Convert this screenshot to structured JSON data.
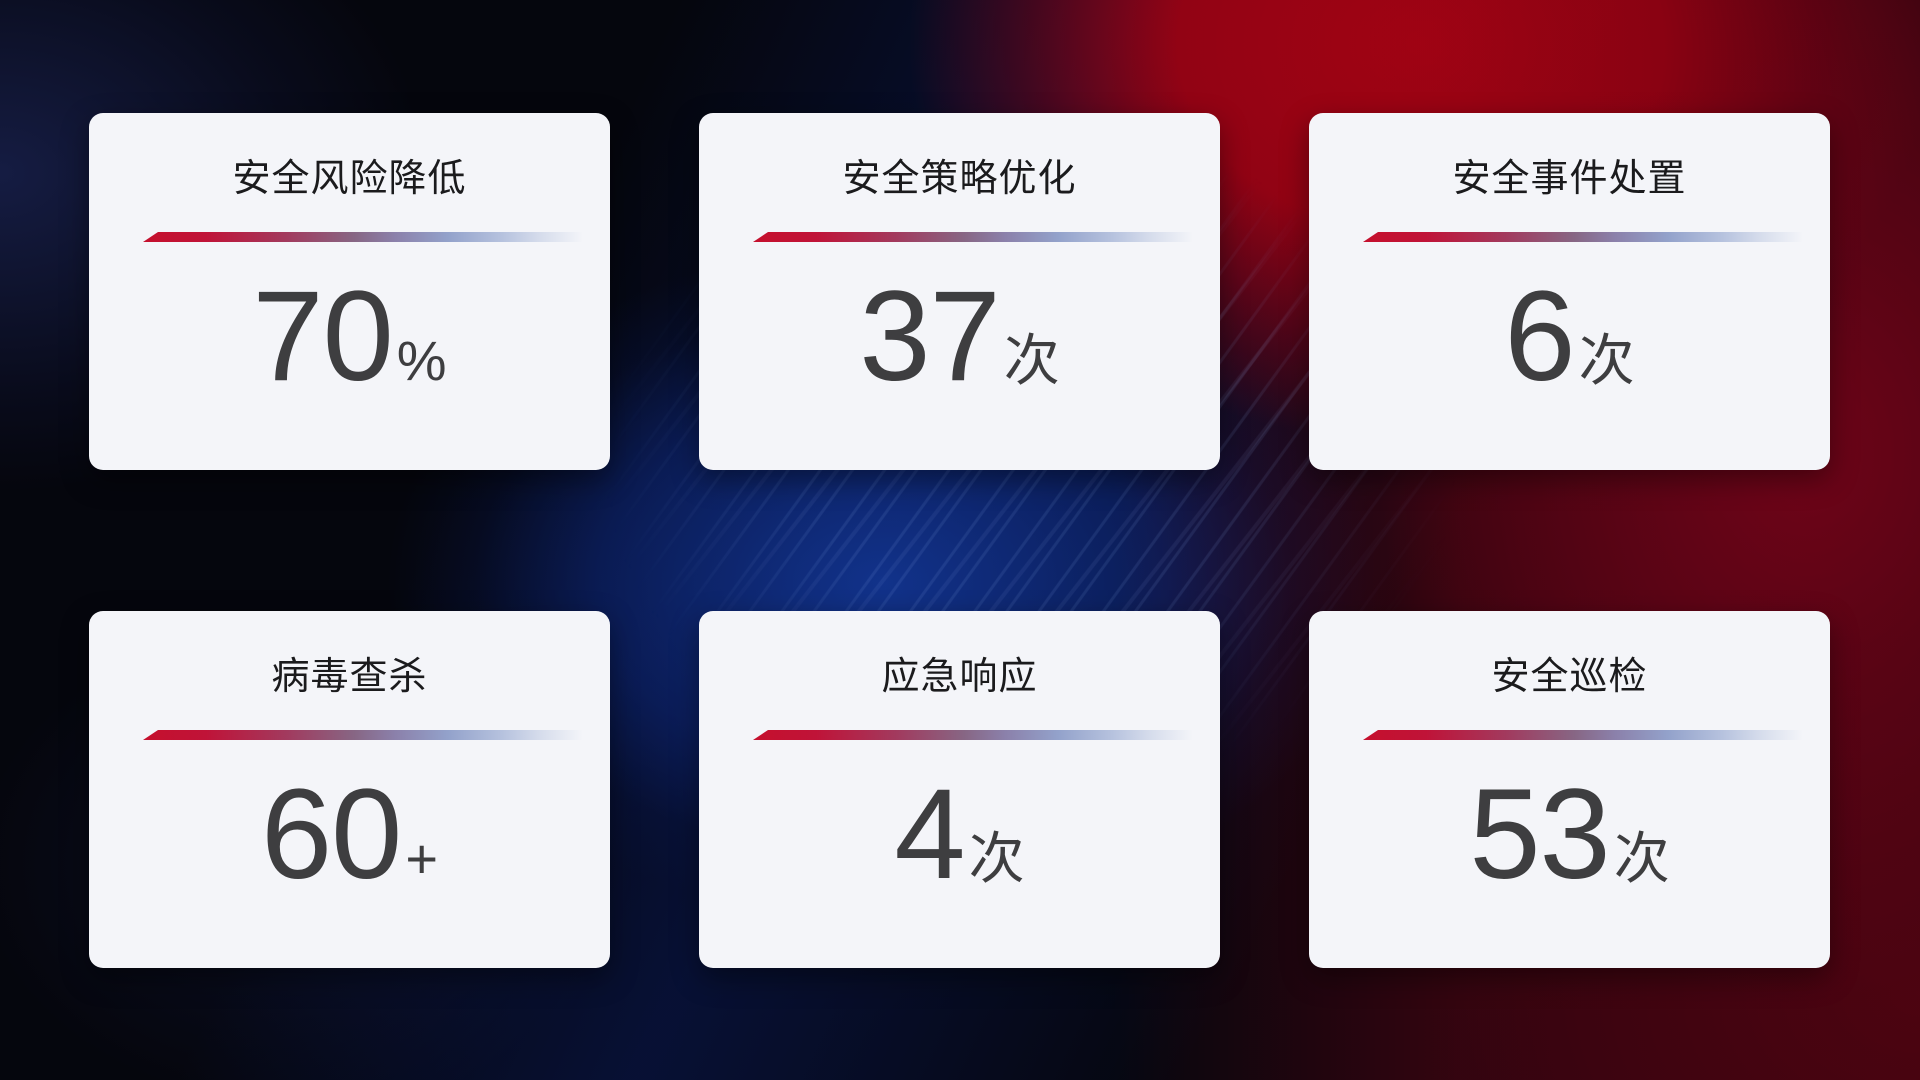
{
  "cards": [
    {
      "title": "安全风险降低",
      "value": "70",
      "unit": "%"
    },
    {
      "title": "安全策略优化",
      "value": "37",
      "unit": "次"
    },
    {
      "title": "安全事件处置",
      "value": "6",
      "unit": "次"
    },
    {
      "title": "病毒查杀",
      "value": "60",
      "unit": "+"
    },
    {
      "title": "应急响应",
      "value": "4",
      "unit": "次"
    },
    {
      "title": "安全巡检",
      "value": "53",
      "unit": "次"
    }
  ],
  "colors": {
    "background_base": "#05060d",
    "background_red_glow": "#a80313",
    "background_blue_band": "#12348f",
    "card_background": "#f4f5f9",
    "accent_line_red": "#c5102d",
    "accent_line_blue": "#93a2cb",
    "title_text": "#1b1b1d",
    "value_text": "#3e3e40"
  }
}
